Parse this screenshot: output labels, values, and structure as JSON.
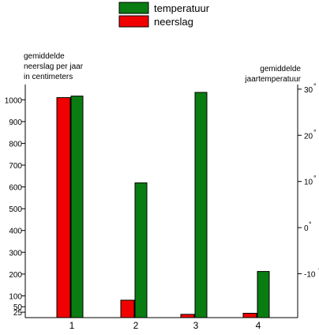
{
  "chart_data": {
    "type": "bar",
    "categories": [
      "1",
      "2",
      "3",
      "4"
    ],
    "legend": {
      "position": "top-center",
      "entries": [
        {
          "label": "temperatuur",
          "color": "#0a7d12"
        },
        {
          "label": "neerslag",
          "color": "#f00000"
        }
      ]
    },
    "left_axis": {
      "label_lines": [
        "gemiddelde",
        "neerslag per jaar",
        "in centimeters"
      ],
      "ylim": [
        0,
        1070
      ],
      "ticks": [
        25,
        50,
        100,
        200,
        300,
        400,
        500,
        600,
        700,
        800,
        900,
        1000
      ],
      "tick_labels": [
        "25",
        "50",
        "100",
        "200",
        "300",
        "400",
        "500",
        "600",
        "700",
        "800",
        "900",
        "1000"
      ]
    },
    "right_axis": {
      "label_lines": [
        "gemiddelde",
        "jaartemperatuur"
      ],
      "ylim": [
        -19.5,
        31
      ],
      "ticks": [
        -10,
        0,
        10,
        20,
        30
      ],
      "tick_labels": [
        "-10",
        "0",
        "10",
        "20",
        "30"
      ],
      "unit_symbol": "°"
    },
    "series": [
      {
        "name": "neerslag",
        "axis": "left",
        "color": "#f00000",
        "values": [
          1010,
          80,
          15,
          20
        ]
      },
      {
        "name": "temperatuur",
        "axis": "right",
        "color": "#0a7d12",
        "values": [
          28.5,
          9.7,
          29.3,
          -9.5
        ]
      }
    ],
    "grid": false
  }
}
